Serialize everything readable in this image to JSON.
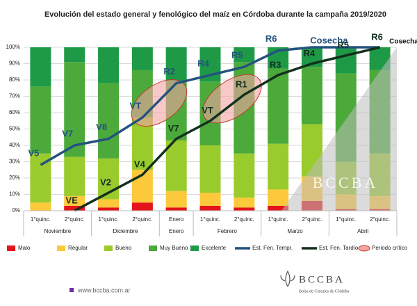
{
  "chart_data": {
    "type": "bar",
    "stacked": true,
    "title": "Evolución del estado general y fenológico del maíz en Córdoba durante la campaña 2019/2020",
    "categories": [
      "1°quinc.",
      "2°quinc.",
      "1°quinc.",
      "2°quinc.",
      "Enero",
      "1°quinc.",
      "2°quinc.",
      "1°quinc.",
      "2°quinc.",
      "1°quinc.",
      "2°quinc."
    ],
    "groups": [
      {
        "label": "Noviembre",
        "count": 2
      },
      {
        "label": "Diciembre",
        "count": 2
      },
      {
        "label": "Enero",
        "count": 1
      },
      {
        "label": "Febrero",
        "count": 2
      },
      {
        "label": "Marzo",
        "count": 2
      },
      {
        "label": "Abril",
        "count": 2
      }
    ],
    "series": [
      {
        "name": "Malo",
        "color": "#e3141b",
        "values": [
          0,
          3,
          2,
          5,
          2,
          3,
          2,
          3,
          6,
          1,
          1
        ]
      },
      {
        "name": "Regular",
        "color": "#fcc93a",
        "values": [
          5,
          6,
          5,
          20,
          10,
          8,
          6,
          10,
          15,
          9,
          8
        ]
      },
      {
        "name": "Bueno",
        "color": "#9acb2d",
        "values": [
          30,
          24,
          25,
          32,
          31,
          29,
          27,
          28,
          32,
          20,
          26
        ]
      },
      {
        "name": "Muy Bueno",
        "color": "#4caa3b",
        "values": [
          41,
          58,
          46,
          29,
          36,
          39,
          56,
          46,
          35,
          54,
          51
        ]
      },
      {
        "name": "Excelente",
        "color": "#1e9a46",
        "values": [
          24,
          9,
          22,
          14,
          21,
          21,
          9,
          13,
          12,
          16,
          14
        ]
      },
      {
        "name": "Est. Fen. Tempr.",
        "type": "line",
        "color": "#24527f",
        "values": [
          28,
          40,
          44,
          57,
          78,
          83,
          88,
          98,
          100,
          100,
          100
        ],
        "stage_labels": [
          "V5",
          "V7",
          "V8",
          "VT",
          "R2",
          "R4",
          "R5",
          "R6",
          "Cosecha",
          null,
          null
        ]
      },
      {
        "name": "Est. Fen. Tardío",
        "type": "line",
        "color": "#13301f",
        "values": [
          null,
          0,
          11,
          22,
          44,
          55,
          71,
          83,
          90,
          95,
          100
        ],
        "stage_labels": [
          null,
          "VE",
          "V2",
          "V4",
          "V7",
          "VT",
          "R1",
          "R3",
          "R4",
          "R5",
          "R6"
        ],
        "end_label": "Cosecha"
      }
    ],
    "critical_period_label": "Periodo crítico",
    "ylim": [
      0,
      100
    ],
    "yticks": [
      {
        "value": 0,
        "label": "0%"
      },
      {
        "value": 10,
        "label": "10%"
      },
      {
        "value": 20,
        "label": "20%"
      },
      {
        "value": 30,
        "label": "30%"
      },
      {
        "value": 40,
        "label": "40%"
      },
      {
        "value": 50,
        "label": "50%"
      },
      {
        "value": 60,
        "label": "60%"
      },
      {
        "value": 70,
        "label": "70%"
      },
      {
        "value": 80,
        "label": "80%"
      },
      {
        "value": 90,
        "label": "90%"
      },
      {
        "value": 100,
        "label": "100%"
      }
    ],
    "grid": true
  },
  "footer": {
    "url": "www.bccba.com.ar",
    "brand": "BCCBA",
    "brand_sub": "Bolsa de Cereales de Córdoba",
    "watermark": "BCCBA"
  }
}
